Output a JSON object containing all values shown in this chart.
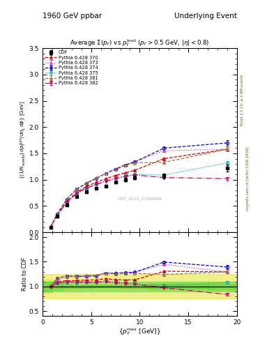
{
  "title_left": "1960 GeV ppbar",
  "title_right": "Underlying Event",
  "plot_title": "Average $\\Sigma(p_T)$ vs $p_T^{\\rm lead}$ ($p_T > 0.5$ GeV, $|\\eta| < 0.8$)",
  "watermark": "CDF_2015_I1388868",
  "ylabel_main": "$\\{(1/N_{\\rm events})\\, dp_T^{\\rm sum}/d\\eta_1\\, d\\phi\\}$ [GeV]",
  "ylabel_ratio": "Ratio to CDF",
  "xlabel": "$\\{p_T^{\\rm max}$ [GeV]$\\}$",
  "xlim": [
    0,
    20
  ],
  "ylim_main": [
    0,
    3.5
  ],
  "ylim_ratio": [
    0.4,
    2.1
  ],
  "cdf_x": [
    0.84,
    1.5,
    2.5,
    3.5,
    4.5,
    5.5,
    6.5,
    7.5,
    8.5,
    9.5,
    12.5,
    19.0
  ],
  "cdf_y": [
    0.1,
    0.3,
    0.52,
    0.68,
    0.77,
    0.84,
    0.88,
    0.95,
    1.0,
    1.04,
    1.07,
    1.22
  ],
  "cdf_yerr": [
    0.01,
    0.02,
    0.02,
    0.02,
    0.02,
    0.02,
    0.02,
    0.02,
    0.03,
    0.03,
    0.05,
    0.07
  ],
  "pythia_x": [
    0.84,
    1.5,
    2.5,
    3.5,
    4.5,
    5.5,
    6.5,
    7.5,
    8.5,
    9.5,
    12.5,
    19.0
  ],
  "p370_y": [
    0.1,
    0.33,
    0.58,
    0.76,
    0.87,
    0.95,
    1.02,
    1.08,
    1.13,
    1.18,
    1.4,
    1.58
  ],
  "p370_e": [
    0.002,
    0.005,
    0.005,
    0.005,
    0.005,
    0.005,
    0.007,
    0.007,
    0.008,
    0.01,
    0.015,
    0.035
  ],
  "p373_y": [
    0.1,
    0.34,
    0.62,
    0.81,
    0.93,
    1.03,
    1.12,
    1.21,
    1.28,
    1.34,
    1.55,
    1.58
  ],
  "p373_e": [
    0.002,
    0.005,
    0.005,
    0.005,
    0.005,
    0.005,
    0.007,
    0.007,
    0.008,
    0.01,
    0.015,
    0.035
  ],
  "p374_y": [
    0.1,
    0.35,
    0.63,
    0.82,
    0.93,
    1.02,
    1.12,
    1.2,
    1.28,
    1.34,
    1.6,
    1.7
  ],
  "p374_e": [
    0.002,
    0.005,
    0.005,
    0.005,
    0.005,
    0.005,
    0.007,
    0.007,
    0.008,
    0.01,
    0.015,
    0.05
  ],
  "p375_y": [
    0.1,
    0.32,
    0.56,
    0.73,
    0.83,
    0.91,
    0.98,
    1.03,
    1.07,
    1.1,
    1.09,
    1.32
  ],
  "p375_e": [
    0.002,
    0.005,
    0.005,
    0.005,
    0.005,
    0.005,
    0.007,
    0.007,
    0.008,
    0.01,
    0.02,
    0.04
  ],
  "p381_y": [
    0.1,
    0.35,
    0.63,
    0.82,
    0.94,
    1.03,
    1.12,
    1.19,
    1.27,
    1.32,
    1.33,
    1.58
  ],
  "p381_e": [
    0.002,
    0.005,
    0.005,
    0.005,
    0.005,
    0.005,
    0.007,
    0.007,
    0.008,
    0.01,
    0.015,
    0.035
  ],
  "p382_y": [
    0.1,
    0.32,
    0.57,
    0.74,
    0.84,
    0.91,
    0.97,
    1.02,
    1.06,
    1.09,
    1.04,
    1.02
  ],
  "p382_e": [
    0.002,
    0.005,
    0.005,
    0.005,
    0.005,
    0.005,
    0.007,
    0.007,
    0.008,
    0.01,
    0.015,
    0.035
  ],
  "c370": "#cc0000",
  "c373": "#cc44cc",
  "c374": "#0000cc",
  "c375": "#00aaaa",
  "c381": "#997744",
  "c382": "#cc0066",
  "ccdf": "#000000",
  "right_label1": "Rivet 3.1.10, ≥ 2.8M events",
  "right_label2": "mcplots.cern.ch [arXiv:1306.3436]"
}
